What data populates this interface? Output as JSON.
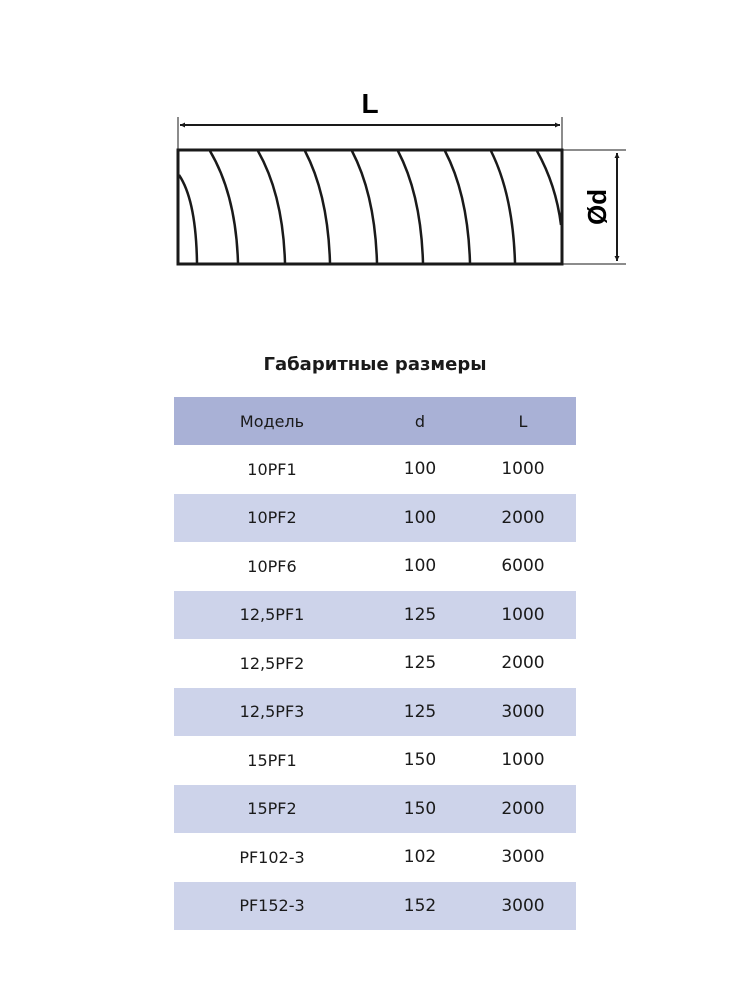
{
  "drawing": {
    "length_label": "L",
    "diameter_label": "Ød"
  },
  "table": {
    "title": "Габаритные размеры",
    "headers": [
      "Модель",
      "d",
      "L"
    ],
    "rows": [
      [
        "10PF1",
        "100",
        "1000"
      ],
      [
        "10PF2",
        "100",
        "2000"
      ],
      [
        "10PF6",
        "100",
        "6000"
      ],
      [
        "12,5PF1",
        "125",
        "1000"
      ],
      [
        "12,5PF2",
        "125",
        "2000"
      ],
      [
        "12,5PF3",
        "125",
        "3000"
      ],
      [
        "15PF1",
        "150",
        "1000"
      ],
      [
        "15PF2",
        "150",
        "2000"
      ],
      [
        "PF102-3",
        "102",
        "3000"
      ],
      [
        "PF152-3",
        "152",
        "3000"
      ]
    ],
    "colors": {
      "header": "#a9b1d6",
      "alt_row": "#cdd3ea"
    }
  }
}
